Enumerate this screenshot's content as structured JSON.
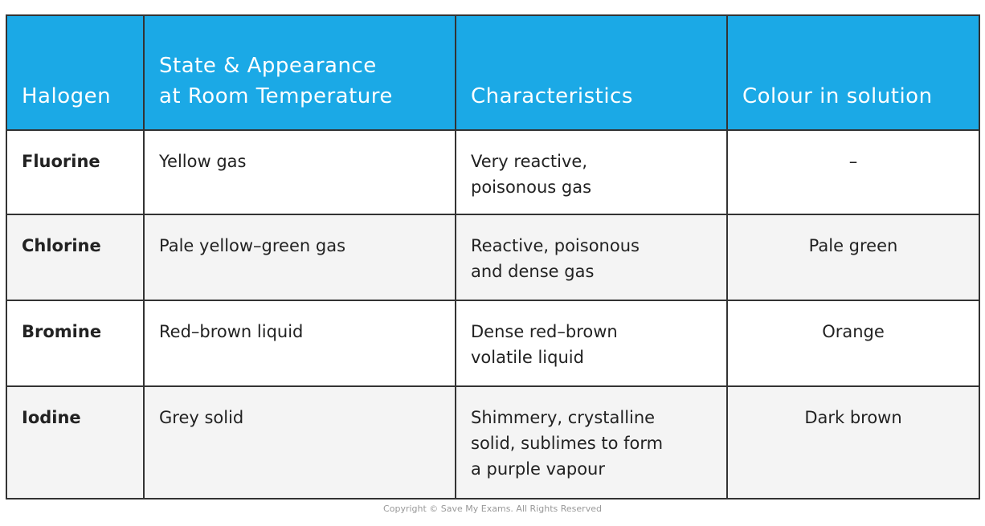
{
  "table": {
    "header": [
      [
        "Halogen"
      ],
      [
        "State & Appearance",
        "at Room Temperature"
      ],
      [
        "Characteristics"
      ],
      [
        "Colour in solution"
      ]
    ],
    "rows": [
      [
        [
          "Fluorine"
        ],
        [
          "Yellow gas"
        ],
        [
          "Very reactive,",
          "poisonous gas"
        ],
        [
          "–"
        ]
      ],
      [
        [
          "Chlorine"
        ],
        [
          "Pale yellow–green gas"
        ],
        [
          "Reactive, poisonous",
          "and dense gas"
        ],
        [
          "Pale green"
        ]
      ],
      [
        [
          "Bromine"
        ],
        [
          "Red–brown liquid"
        ],
        [
          "Dense red–brown",
          "volatile liquid"
        ],
        [
          "Orange"
        ]
      ],
      [
        [
          "Iodine"
        ],
        [
          "Grey solid"
        ],
        [
          "Shimmery, crystalline",
          "solid, sublimes to form",
          "a purple vapour"
        ],
        [
          "Dark brown"
        ]
      ]
    ]
  },
  "footer": "Copyright © Save My Exams. All Rights Reserved"
}
